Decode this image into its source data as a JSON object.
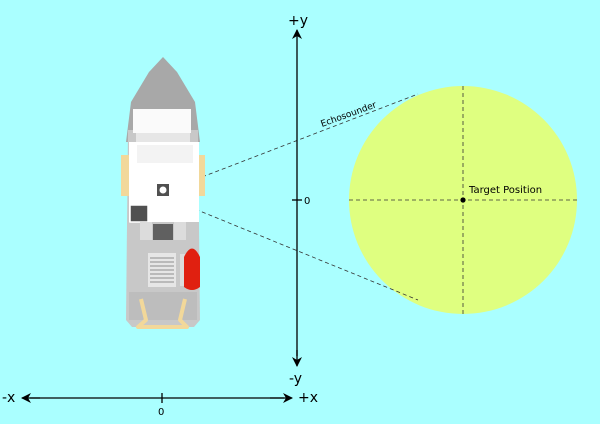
{
  "axes": {
    "y_positive": "+y",
    "y_negative": "-y",
    "x_positive": "+x",
    "x_negative": "-x",
    "y_zero": "0",
    "x_zero": "0"
  },
  "labels": {
    "echosounder": "Echosounder",
    "target": "Target Position"
  },
  "colors": {
    "background": "#aaffff",
    "target_circle": "#dfff80",
    "ship_hull": "#c8c8c8",
    "ship_bow": "#a8a8a8",
    "lifeboat": "#e02010",
    "equipment": "#f2d89a"
  }
}
